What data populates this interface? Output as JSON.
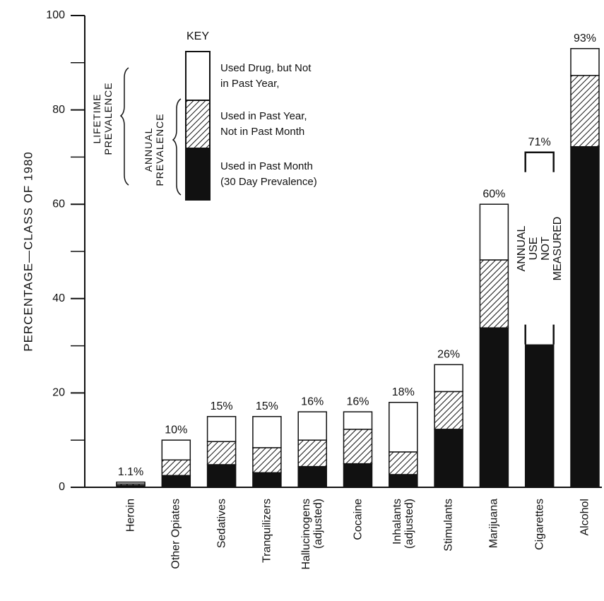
{
  "chart_data": {
    "type": "stacked-bar",
    "y_label": "PERCENTAGE—CLASS OF 1980",
    "categories": [
      "Heroin",
      "Other Opiates",
      "Sedatives",
      "Tranquilizers",
      "Hallucinogens\n(adjusted)",
      "Cocaine",
      "Inhalants\n(adjusted)",
      "Stimulants",
      "Marijuana",
      "Cigarettes",
      "Alcohol"
    ],
    "series": [
      {
        "name": "Used in Past Month\n(30 Day Prevalence)",
        "color": "#111111",
        "values": [
          0.4,
          2.5,
          4.8,
          3.1,
          4.4,
          5.0,
          2.7,
          12.3,
          33.8,
          30.3,
          72.2
        ]
      },
      {
        "name": "Used in Past Year,\nNot in Past Month",
        "color": "hatch",
        "values": [
          0.3,
          3.3,
          4.9,
          5.3,
          5.6,
          7.3,
          4.8,
          8.0,
          14.4,
          null,
          15.1
        ]
      },
      {
        "name": "Used Drug, but Not\nin Past Year,",
        "color": "#ffffff",
        "values": [
          0.4,
          4.2,
          5.3,
          6.6,
          6.0,
          3.7,
          10.5,
          5.7,
          11.8,
          40.7,
          5.7
        ]
      }
    ],
    "totals": [
      1.1,
      10,
      15,
      15,
      16,
      16,
      18,
      26,
      60,
      71,
      93
    ],
    "value_labels": [
      "1.1%",
      "10%",
      "15%",
      "15%",
      "16%",
      "16%",
      "18%",
      "26%",
      "60%",
      "71%",
      "93%"
    ],
    "ylim": [
      0,
      100
    ],
    "yticks": [
      0,
      20,
      40,
      60,
      80,
      100
    ],
    "yticks_minor": [
      10,
      30,
      50,
      70,
      90
    ],
    "legend_title": "KEY",
    "annotations": {
      "lifetime": "LIFETIME\nPREVALENCE",
      "annual": "ANNUAL\nPREVALENCE",
      "not_measured": "ANNUAL USE\nNOT MEASURED"
    }
  }
}
